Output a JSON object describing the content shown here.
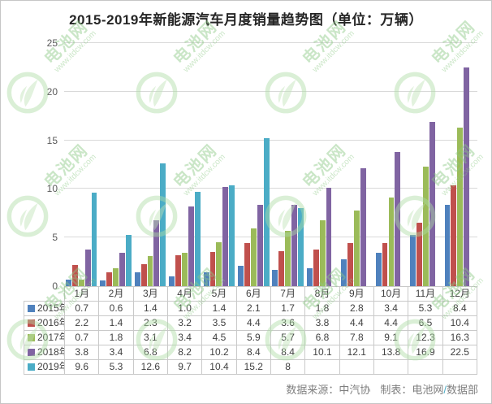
{
  "chart_data": {
    "type": "bar",
    "title": "2015-2019年新能源汽车月度销量趋势图（单位：万辆）",
    "unit": "万辆",
    "categories": [
      "1月",
      "2月",
      "3月",
      "4月",
      "5月",
      "6月",
      "7月",
      "8月",
      "9月",
      "10月",
      "11月",
      "12月"
    ],
    "series": [
      {
        "name": "2015年",
        "color": "#4F81BD",
        "values": [
          0.7,
          0.6,
          1.4,
          1.0,
          1.4,
          2.1,
          1.7,
          1.8,
          2.8,
          3.4,
          5.3,
          8.4
        ],
        "display": [
          "0.7",
          "0.6",
          "1.4",
          "1.0",
          "1.4",
          "2.1",
          "1.7",
          "1.8",
          "2.8",
          "3.4",
          "5.3",
          "8.4"
        ]
      },
      {
        "name": "2016年",
        "color": "#C0504D",
        "values": [
          2.2,
          1.4,
          2.3,
          3.2,
          3.5,
          4.4,
          3.6,
          3.8,
          4.4,
          4.4,
          6.5,
          10.4
        ],
        "display": [
          "2.2",
          "1.4",
          "2.3",
          "3.2",
          "3.5",
          "4.4",
          "3.6",
          "3.8",
          "4.4",
          "4.4",
          "6.5",
          "10.4"
        ]
      },
      {
        "name": "2017年",
        "color": "#9BBB59",
        "values": [
          0.7,
          1.8,
          3.1,
          3.4,
          4.5,
          5.9,
          5.7,
          6.8,
          7.8,
          9.1,
          12.3,
          16.3
        ],
        "display": [
          "0.7",
          "1.8",
          "3.1",
          "3.4",
          "4.5",
          "5.9",
          "5.7",
          "6.8",
          "7.8",
          "9.1",
          "12.3",
          "16.3"
        ]
      },
      {
        "name": "2018年",
        "color": "#8064A2",
        "values": [
          3.8,
          3.4,
          6.8,
          8.2,
          10.2,
          8.4,
          8.4,
          10.1,
          12.1,
          13.8,
          16.9,
          22.5
        ],
        "display": [
          "3.8",
          "3.4",
          "6.8",
          "8.2",
          "10.2",
          "8.4",
          "8.4",
          "10.1",
          "12.1",
          "13.8",
          "16.9",
          "22.5"
        ]
      },
      {
        "name": "2019年",
        "color": "#4BACC6",
        "values": [
          9.6,
          5.3,
          12.6,
          9.7,
          10.4,
          15.2,
          8,
          null,
          null,
          null,
          null,
          null
        ],
        "display": [
          "9.6",
          "5.3",
          "12.6",
          "9.7",
          "10.4",
          "15.2",
          "8",
          "",
          "",
          "",
          "",
          ""
        ]
      }
    ],
    "ylim": [
      0,
      25
    ],
    "yticks": [
      0,
      5,
      10,
      15,
      20,
      25
    ],
    "grid": true,
    "legend_position": "attached-data-table-left-column"
  },
  "footer": {
    "source": "数据来源：中汽协",
    "maker": "制表：电池网",
    "slash": "/",
    "department": "数据部"
  },
  "watermark": {
    "brand": "电池网",
    "site": "www.itdcw.com"
  }
}
